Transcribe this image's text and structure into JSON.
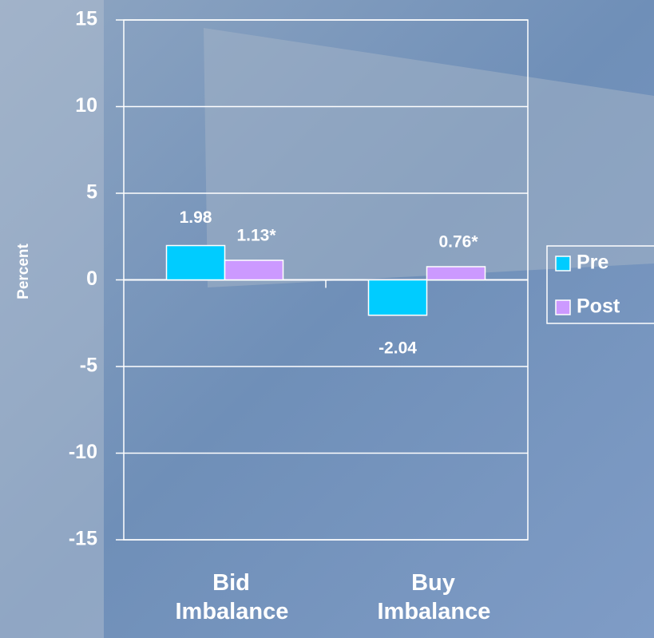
{
  "chart_data": {
    "type": "bar",
    "y_label": "Percent",
    "categories": [
      "Bid Imbalance",
      "Buy Imbalance"
    ],
    "series": [
      {
        "name": "Pre",
        "color": "#00ccff",
        "values": [
          1.98,
          -2.04
        ]
      },
      {
        "name": "Post",
        "color": "#cc99ff",
        "values": [
          1.13,
          0.76
        ],
        "value_labels": [
          "1.13*",
          "0.76*"
        ]
      }
    ],
    "ylim": [
      -15,
      15
    ],
    "yticks": [
      -15,
      -10,
      -5,
      0,
      5,
      10,
      15
    ],
    "grid": true,
    "legend": "right"
  }
}
